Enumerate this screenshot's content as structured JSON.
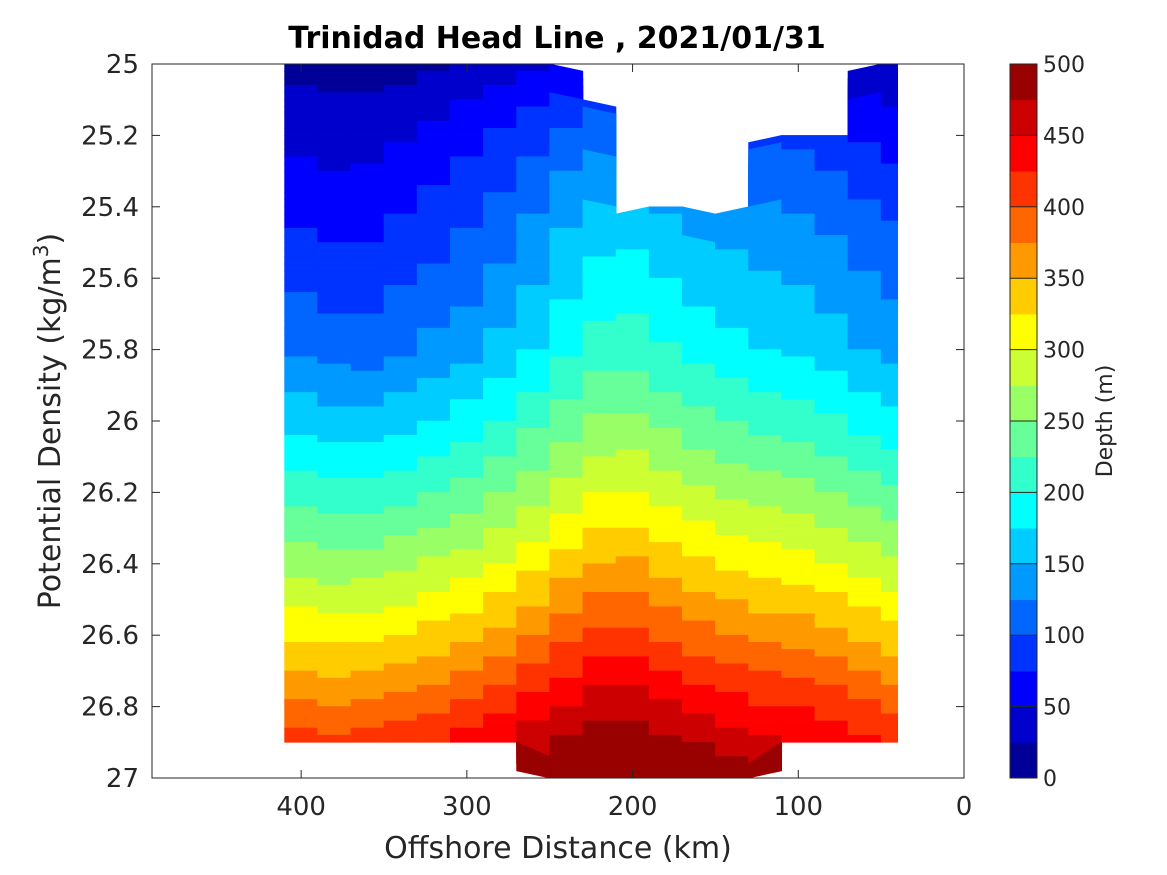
{
  "chart_data": {
    "type": "heatmap",
    "title": "Trinidad Head Line , 2021/01/31",
    "xlabel": "Offshore Distance (km)",
    "ylabel_prefix": "Potential Density (kg/m",
    "ylabel_sup": "3",
    "ylabel_suffix": ")",
    "colorbar_label": "Depth (m)",
    "xlim": [
      490,
      0
    ],
    "ylim": [
      25,
      27
    ],
    "y_reversed": true,
    "x_reversed": true,
    "x_ticks": [
      {
        "value": 400,
        "label": "400"
      },
      {
        "value": 300,
        "label": "300"
      },
      {
        "value": 200,
        "label": "200"
      },
      {
        "value": 100,
        "label": "100"
      },
      {
        "value": 0,
        "label": "0"
      }
    ],
    "y_ticks": [
      {
        "value": 25,
        "label": "25"
      },
      {
        "value": 25.2,
        "label": "25.2"
      },
      {
        "value": 25.4,
        "label": "25.4"
      },
      {
        "value": 25.6,
        "label": "25.6"
      },
      {
        "value": 25.8,
        "label": "25.8"
      },
      {
        "value": 26,
        "label": "26"
      },
      {
        "value": 26.2,
        "label": "26.2"
      },
      {
        "value": 26.4,
        "label": "26.4"
      },
      {
        "value": 26.6,
        "label": "26.6"
      },
      {
        "value": 26.8,
        "label": "26.8"
      },
      {
        "value": 27,
        "label": "27"
      }
    ],
    "colorbar_range": [
      0,
      500
    ],
    "colorbar_ticks": [
      {
        "value": 0,
        "label": "0"
      },
      {
        "value": 50,
        "label": "50"
      },
      {
        "value": 100,
        "label": "100"
      },
      {
        "value": 150,
        "label": "150"
      },
      {
        "value": 200,
        "label": "200"
      },
      {
        "value": 250,
        "label": "250"
      },
      {
        "value": 300,
        "label": "300"
      },
      {
        "value": 350,
        "label": "350"
      },
      {
        "value": 400,
        "label": "400"
      },
      {
        "value": 450,
        "label": "450"
      },
      {
        "value": 500,
        "label": "500"
      }
    ],
    "contour_step": 25,
    "colormap": "jet",
    "grid": false,
    "x": [
      410,
      390,
      370,
      350,
      330,
      310,
      290,
      270,
      250,
      230,
      210,
      190,
      170,
      150,
      130,
      110,
      90,
      70,
      50,
      40
    ],
    "bottom_density": [
      26.9,
      26.9,
      26.9,
      26.9,
      26.9,
      26.9,
      26.9,
      26.9,
      27.0,
      27.0,
      27.0,
      27.0,
      27.0,
      27.0,
      27.0,
      26.9,
      26.9,
      26.9,
      26.9,
      26.9
    ],
    "top_density": [
      25.0,
      25.0,
      25.0,
      25.0,
      25.0,
      25.0,
      25.0,
      25.0,
      25.0,
      25.1,
      25.5,
      25.4,
      25.4,
      25.5,
      25.4,
      25.2,
      25.2,
      25.2,
      25.0,
      25.0
    ],
    "isopycnal_depth_levels": [
      0,
      25,
      50,
      75,
      100,
      125,
      150,
      175,
      200,
      225,
      250,
      275,
      300,
      325,
      350,
      375,
      400,
      425,
      450,
      475,
      500
    ],
    "isopycnal_depths": [
      [
        17,
        14,
        11,
        14,
        19,
        23,
        30,
        38,
        48,
        57,
        62,
        57,
        51,
        49,
        47,
        43,
        40,
        33,
        25,
        23
      ],
      [
        31,
        28,
        26,
        30,
        36,
        44,
        55,
        66,
        78,
        90,
        96,
        90,
        84,
        82,
        80,
        74,
        70,
        60,
        48,
        45
      ],
      [
        44,
        40,
        38,
        43,
        50,
        59,
        71,
        84,
        98,
        112,
        121,
        114,
        108,
        104,
        100,
        94,
        90,
        80,
        66,
        62
      ],
      [
        57,
        52,
        49,
        55,
        64,
        73,
        86,
        100,
        116,
        132,
        142,
        134,
        127,
        122,
        117,
        111,
        107,
        96,
        82,
        77
      ],
      [
        71,
        65,
        61,
        67,
        78,
        86,
        99,
        114,
        131,
        149,
        160,
        151,
        143,
        137,
        131,
        125,
        121,
        110,
        96,
        91
      ],
      [
        84,
        77,
        72,
        79,
        90,
        98,
        111,
        127,
        145,
        164,
        176,
        166,
        157,
        150,
        143,
        138,
        133,
        123,
        109,
        104
      ],
      [
        98,
        90,
        84,
        91,
        102,
        110,
        123,
        139,
        158,
        178,
        191,
        180,
        170,
        162,
        155,
        150,
        145,
        135,
        121,
        116
      ],
      [
        111,
        103,
        96,
        103,
        114,
        122,
        135,
        151,
        170,
        191,
        205,
        193,
        182,
        174,
        166,
        161,
        156,
        146,
        132,
        127
      ],
      [
        127,
        118,
        110,
        117,
        128,
        136,
        149,
        165,
        184,
        205,
        219,
        207,
        196,
        187,
        178,
        173,
        168,
        158,
        144,
        139
      ],
      [
        148,
        140,
        132,
        139,
        150,
        158,
        171,
        187,
        206,
        226,
        240,
        228,
        216,
        207,
        198,
        193,
        188,
        178,
        164,
        159
      ],
      [
        170,
        163,
        156,
        162,
        173,
        181,
        193,
        209,
        228,
        248,
        262,
        250,
        238,
        229,
        220,
        215,
        210,
        200,
        186,
        181
      ],
      [
        193,
        186,
        180,
        186,
        196,
        204,
        216,
        232,
        251,
        270,
        284,
        272,
        260,
        251,
        242,
        237,
        232,
        222,
        208,
        203
      ],
      [
        217,
        210,
        205,
        211,
        221,
        229,
        241,
        256,
        275,
        294,
        308,
        296,
        284,
        275,
        266,
        261,
        256,
        246,
        232,
        227
      ],
      [
        242,
        236,
        231,
        237,
        247,
        255,
        267,
        282,
        300,
        319,
        333,
        321,
        309,
        300,
        291,
        286,
        281,
        271,
        257,
        252
      ],
      [
        268,
        262,
        258,
        264,
        274,
        282,
        294,
        309,
        327,
        345,
        359,
        347,
        335,
        326,
        317,
        312,
        307,
        297,
        283,
        278
      ],
      [
        295,
        290,
        286,
        292,
        302,
        310,
        322,
        337,
        355,
        373,
        386,
        374,
        362,
        353,
        344,
        339,
        334,
        324,
        310,
        305
      ],
      [
        323,
        318,
        315,
        321,
        331,
        339,
        351,
        366,
        384,
        401,
        414,
        402,
        390,
        381,
        372,
        367,
        362,
        352,
        338,
        333
      ],
      [
        352,
        348,
        345,
        351,
        361,
        369,
        381,
        396,
        413,
        430,
        442,
        430,
        419,
        410,
        401,
        396,
        391,
        381,
        367,
        362
      ],
      [
        382,
        379,
        376,
        382,
        392,
        400,
        412,
        427,
        443,
        459,
        470,
        459,
        448,
        439,
        430,
        425,
        420,
        410,
        396,
        391
      ],
      [
        413,
        411,
        408,
        414,
        424,
        432,
        444,
        458,
        473,
        488,
        498,
        488,
        478,
        469,
        460,
        455,
        450,
        440,
        426,
        421
      ],
      [
        445,
        443,
        441,
        447,
        457,
        465,
        477,
        490,
        504,
        517,
        526,
        517,
        508,
        499,
        490,
        485,
        480,
        470,
        456,
        451
      ]
    ],
    "isopycnal_depth_densities": [
      25.0,
      25.1,
      25.2,
      25.3,
      25.4,
      25.5,
      25.6,
      25.7,
      25.8,
      25.9,
      26.0,
      26.1,
      26.2,
      26.3,
      26.4,
      26.5,
      26.6,
      26.7,
      26.8,
      26.9,
      27.0
    ]
  }
}
